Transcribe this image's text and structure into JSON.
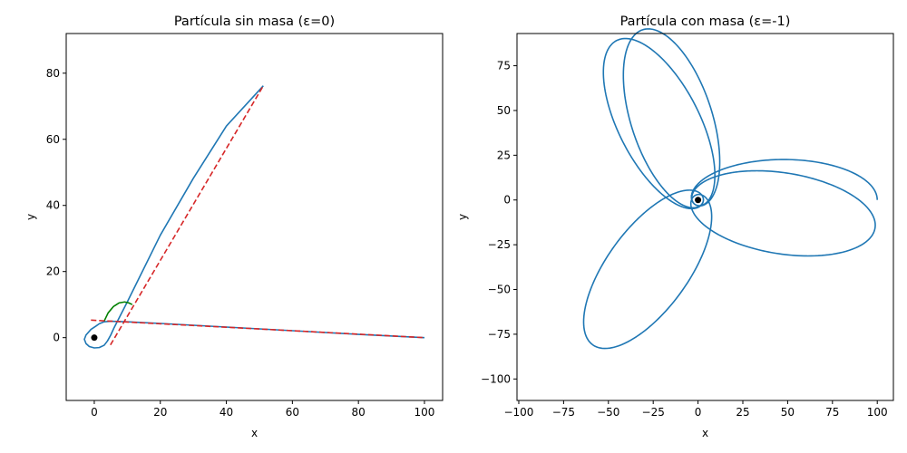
{
  "chart_data": [
    {
      "type": "line",
      "title": "Partícula sin masa (ε=0)",
      "xlabel": "x",
      "ylabel": "y",
      "xlim": [
        -8.5,
        105.5
      ],
      "ylim": [
        -19,
        92
      ],
      "xticks": [
        0,
        20,
        40,
        60,
        80,
        100
      ],
      "yticks": [
        0,
        20,
        40,
        60,
        80
      ],
      "grid": false,
      "colors": {
        "trajectory": "#1f77b4",
        "asymptote": "#d62728",
        "arc": "#008000",
        "center": "#000000"
      },
      "trajectory": {
        "x": [
          100,
          80,
          60,
          40,
          20,
          14,
          10,
          7,
          5,
          3,
          1.5,
          0.5,
          -1,
          -2.5,
          -3,
          -2.5,
          -1.5,
          0,
          1.5,
          3,
          4,
          5,
          6,
          10,
          20,
          30,
          40,
          51.2
        ],
        "y": [
          0,
          1,
          2.1,
          3.2,
          4.3,
          4.6,
          4.8,
          4.9,
          4.95,
          4.8,
          4.2,
          3.5,
          2.5,
          0.8,
          -0.5,
          -1.8,
          -2.7,
          -3.1,
          -3.0,
          -2.3,
          -1.0,
          0.8,
          3.0,
          10.8,
          31.0,
          48.2,
          64.0,
          76.2
        ]
      },
      "asymptote_1": {
        "x": [
          -1,
          100
        ],
        "y": [
          5.3,
          0
        ]
      },
      "asymptote_2": {
        "x": [
          4.9,
          51.2
        ],
        "y": [
          -2.2,
          76.2
        ]
      },
      "angle_arc": {
        "x": [
          3.0,
          4.2,
          5.8,
          7.5,
          9.2,
          10.5,
          11.5
        ],
        "y": [
          5.0,
          7.5,
          9.4,
          10.5,
          10.8,
          10.5,
          10.0
        ]
      },
      "center_point": {
        "x": 0,
        "y": 0
      }
    },
    {
      "type": "line",
      "title": "Partícula con masa (ε=-1)",
      "xlabel": "x",
      "ylabel": "y",
      "xlim": [
        -101,
        109
      ],
      "ylim": [
        -112,
        93
      ],
      "xticks": [
        -100,
        -75,
        -50,
        -25,
        0,
        25,
        50,
        75,
        100
      ],
      "yticks": [
        -100,
        -75,
        -50,
        -25,
        0,
        25,
        50,
        75
      ],
      "grid": false,
      "colors": {
        "trajectory": "#1f77b4",
        "center": "#000000"
      },
      "rosette": {
        "r_outer": 100,
        "r_inner": 3,
        "start_angle_deg": 0,
        "precession_deg": 117,
        "revolutions": 4.55
      },
      "center_point": {
        "x": 0,
        "y": 0
      }
    }
  ]
}
